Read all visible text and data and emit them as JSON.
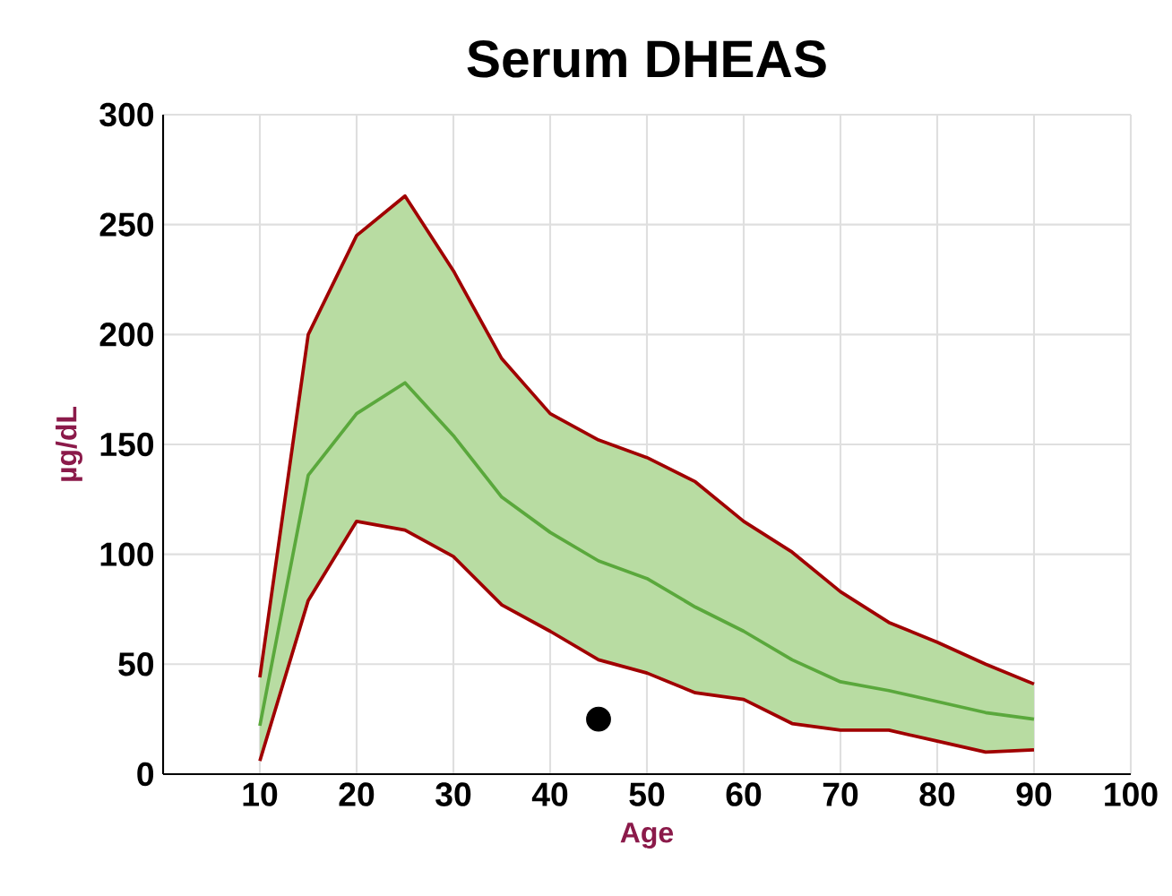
{
  "chart_data": {
    "type": "line",
    "title": "Serum DHEAS",
    "xlabel": "Age",
    "ylabel": "µg/dL",
    "xlim": [
      0,
      100
    ],
    "xticks": [
      10,
      20,
      30,
      40,
      50,
      60,
      70,
      80,
      90,
      100
    ],
    "ylim": [
      0,
      300
    ],
    "yticks": [
      0,
      50,
      100,
      150,
      200,
      250,
      300
    ],
    "grid": true,
    "series": [
      {
        "color": "#5aa83c",
        "x": [
          10,
          15,
          20,
          25,
          30,
          35,
          40,
          45,
          50,
          55,
          60,
          65,
          70,
          75,
          80,
          85,
          90
        ],
        "values": [
          22,
          136,
          164,
          178,
          154,
          126,
          110,
          97,
          89,
          76,
          65,
          52,
          42,
          38,
          33,
          28,
          25
        ],
        "lower": [
          6,
          79,
          115,
          111,
          99,
          77,
          65,
          52,
          46,
          37,
          34,
          23,
          20,
          20,
          15,
          10,
          11
        ],
        "upper": [
          44,
          200,
          245,
          263,
          229,
          189,
          164,
          152,
          144,
          133,
          115,
          101,
          83,
          69,
          60,
          50,
          41
        ]
      },
      {
        "color": "#a00000",
        "x": [
          10,
          15,
          20,
          25,
          30,
          35,
          40,
          45,
          50,
          55,
          60,
          65,
          70,
          75,
          80,
          85,
          90
        ],
        "values": [
          44,
          200,
          245,
          263,
          229,
          189,
          164,
          152,
          144,
          133,
          115,
          101,
          83,
          69,
          60,
          50,
          41
        ]
      },
      {
        "color": "#a00000",
        "x": [
          10,
          15,
          20,
          25,
          30,
          35,
          40,
          45,
          50,
          55,
          60,
          65,
          70,
          75,
          80,
          85,
          90
        ],
        "values": [
          6,
          79,
          115,
          111,
          99,
          77,
          65,
          52,
          46,
          37,
          34,
          23,
          20,
          20,
          15,
          10,
          11
        ]
      },
      {
        "type": "scatter",
        "color": "#000000",
        "x": [
          45
        ],
        "values": [
          25
        ]
      }
    ]
  }
}
